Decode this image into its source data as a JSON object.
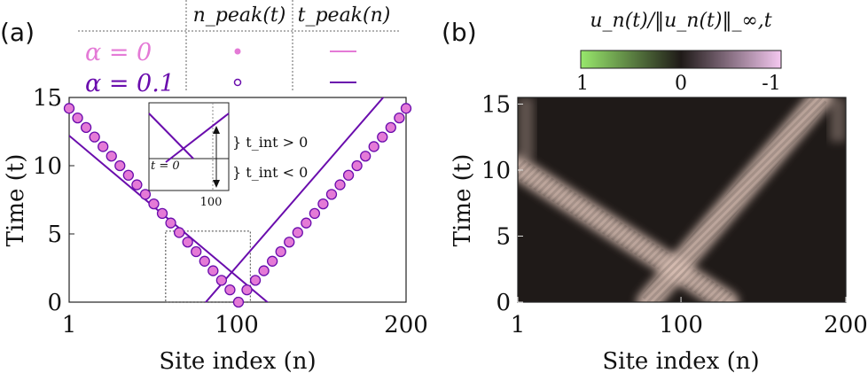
{
  "panel_a": {
    "label": "(a)",
    "legend": {
      "col1_header": "n_peak(t)",
      "col2_header": "t_peak(n)",
      "rows": [
        {
          "name": "α = 0",
          "color": "#e47ad6"
        },
        {
          "name": "α = 0.1",
          "color": "#6a0dad"
        }
      ]
    },
    "inset": {
      "label_zero": "t = 0",
      "label_pos": "} t_int > 0",
      "label_neg": "} t_int < 0",
      "tick": "100"
    }
  },
  "panel_b": {
    "label": "(b)",
    "colorbar_title": "u_n(t)/‖u_n(t)‖_∞,t",
    "colorbar_ticks": [
      "1",
      "0",
      "-1"
    ],
    "colorbar_colors": [
      "#98e86c",
      "#1f1a18",
      "#f4c8f0"
    ]
  },
  "chart_data": [
    {
      "type": "scatter",
      "panel": "a",
      "title": "",
      "xlabel": "Site index (n)",
      "ylabel": "Time (t)",
      "xlim": [
        1,
        200
      ],
      "ylim": [
        0,
        15
      ],
      "xticks": [
        "1",
        "100",
        "200"
      ],
      "yticks": [
        "0",
        "5",
        "10",
        "15"
      ],
      "series": [
        {
          "name": "α = 0",
          "kind": "markers",
          "color": "#e47ad6",
          "x": [
            1,
            6,
            11,
            16,
            21,
            26,
            31,
            36,
            41,
            46,
            51,
            56,
            61,
            66,
            71,
            76,
            81,
            86,
            91,
            96,
            101,
            106,
            111,
            116,
            121,
            126,
            131,
            136,
            141,
            146,
            151,
            156,
            161,
            166,
            171,
            176,
            181,
            186,
            191,
            196,
            200
          ],
          "y": [
            14.2,
            13.5,
            12.8,
            12.1,
            11.4,
            10.7,
            10.0,
            9.3,
            8.6,
            7.9,
            7.2,
            6.5,
            5.8,
            5.1,
            4.4,
            3.7,
            3.0,
            2.3,
            1.6,
            0.9,
            0.0,
            0.9,
            1.6,
            2.3,
            3.0,
            3.7,
            4.4,
            5.1,
            5.8,
            6.5,
            7.2,
            7.9,
            8.6,
            9.3,
            10.0,
            10.7,
            11.4,
            12.1,
            12.8,
            13.5,
            14.2
          ]
        },
        {
          "name": "α = 0.1",
          "kind": "line",
          "color": "#6a0dad",
          "segments": [
            {
              "x": [
                1,
                120
              ],
              "y": [
                12.2,
                -0.2
              ]
            },
            {
              "x": [
                81,
                190
              ],
              "y": [
                -0.1,
                15.5
              ]
            }
          ]
        }
      ],
      "dotted_box": {
        "x": [
          58,
          108
        ],
        "y": [
          0,
          5.2
        ]
      }
    },
    {
      "type": "heatmap",
      "panel": "b",
      "title": "",
      "xlabel": "Site index (n)",
      "ylabel": "Time (t)",
      "xlim": [
        1,
        200
      ],
      "ylim": [
        0,
        15.5
      ],
      "xticks": [
        "1",
        "100",
        "200"
      ],
      "yticks": [
        "0",
        "5",
        "10",
        "15"
      ],
      "colorbar_range": [
        1,
        -1
      ],
      "bands": [
        {
          "x": [
            1,
            128
          ],
          "y": [
            10.2,
            0
          ]
        },
        {
          "x": [
            80,
            185
          ],
          "y": [
            0,
            15.5
          ]
        }
      ]
    }
  ]
}
